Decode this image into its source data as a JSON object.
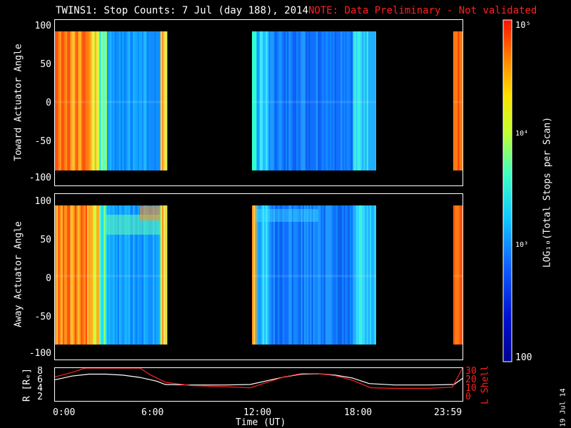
{
  "title": {
    "main": "TWINS1: Stop Counts:  7 Jul (day 188), 2014",
    "note": "NOTE: Data Preliminary - Not validated"
  },
  "stamp": "19 Jul 14",
  "colors": {
    "background": "#000000",
    "axis": "#ffffff",
    "note": "#ff2020",
    "lshell": "#ff2020",
    "radius": "#ffffff"
  },
  "chart_data": [
    {
      "type": "heatmap",
      "ylabel": "Toward Actuator Angle",
      "ylim": [
        -110,
        110
      ],
      "yticks": [
        "100",
        "50",
        "0",
        "-50",
        "-100"
      ],
      "xlim_hours": [
        0,
        24
      ],
      "data_blocks_hours": [
        [
          0.0,
          6.6
        ],
        [
          11.6,
          18.9
        ],
        [
          23.45,
          24.0
        ]
      ],
      "angle_range": [
        -90,
        90
      ],
      "colorscale": "log",
      "clim": [
        100,
        100000
      ]
    },
    {
      "type": "heatmap",
      "ylabel": "Away Actuator Angle",
      "ylim": [
        -110,
        110
      ],
      "yticks": [
        "100",
        "50",
        "0",
        "-50",
        "-100"
      ],
      "xlim_hours": [
        0,
        24
      ],
      "data_blocks_hours": [
        [
          0.0,
          6.6
        ],
        [
          11.6,
          18.9
        ],
        [
          23.45,
          24.0
        ]
      ],
      "angle_range": [
        -90,
        90
      ],
      "colorscale": "log",
      "clim": [
        100,
        100000
      ]
    },
    {
      "type": "line",
      "ylabel_left": "R [Rₑ]",
      "ylabel_right": "L Shell",
      "yticks_left": [
        "8",
        "6",
        "4",
        "2"
      ],
      "yticks_right": [
        "30",
        "20",
        "10",
        "0"
      ],
      "ylim_left": [
        1.5,
        8.5
      ],
      "ylim_right": [
        0,
        30
      ],
      "xlabel": "Time (UT)",
      "xticks": [
        "0:00",
        "6:00",
        "12:00",
        "18:00",
        "23:59"
      ],
      "series": [
        {
          "axis": "left",
          "x": [
            0.0,
            1.0,
            2.0,
            3.0,
            4.0,
            5.0,
            6.0,
            6.5,
            8.0,
            10.0,
            11.5,
            12.5,
            13.5,
            14.5,
            15.5,
            16.5,
            17.5,
            18.5,
            20.0,
            22.0,
            23.5,
            24.0
          ],
          "y": [
            6.0,
            6.8,
            7.2,
            7.2,
            7.0,
            6.5,
            5.7,
            5.0,
            4.9,
            4.9,
            5.0,
            5.8,
            6.6,
            7.2,
            7.3,
            7.0,
            6.4,
            5.2,
            4.9,
            4.9,
            5.0,
            6.3
          ]
        },
        {
          "axis": "right",
          "x": [
            0.0,
            1.0,
            1.8,
            5.0,
            5.6,
            6.5,
            8.0,
            10.0,
            11.5,
            12.5,
            13.5,
            14.5,
            15.5,
            16.5,
            17.5,
            18.6,
            20.0,
            22.0,
            23.4,
            24.0
          ],
          "y": [
            22.0,
            26.0,
            30.0,
            30.0,
            24.0,
            17.0,
            14.0,
            13.0,
            12.0,
            17.0,
            22.0,
            25.0,
            25.0,
            23.0,
            19.0,
            12.0,
            11.5,
            11.5,
            12.5,
            30.0
          ]
        }
      ]
    }
  ],
  "colorbar": {
    "label": "LOG₁₀(Total Stops per Scan)",
    "ticks": [
      "10⁵",
      "10⁴",
      "10³",
      "100"
    ],
    "tick_values": [
      100000,
      10000,
      1000,
      100
    ]
  }
}
